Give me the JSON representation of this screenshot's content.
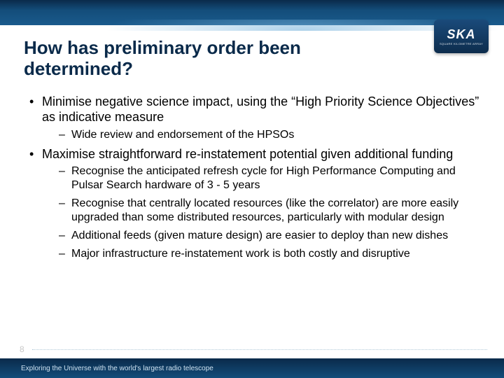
{
  "logo": {
    "main": "SKA",
    "sub": "SQUARE KILOMETRE ARRAY"
  },
  "title": "How has preliminary order been determined?",
  "bullets": [
    {
      "text": "Minimise negative science impact, using the “High Priority Science Objectives” as indicative measure",
      "sub": [
        "Wide review and endorsement of the HPSOs"
      ]
    },
    {
      "text": "Maximise straightforward re-instatement potential given additional funding",
      "sub": [
        "Recognise the anticipated refresh cycle for High Performance Computing and Pulsar Search hardware of 3 - 5 years",
        "Recognise that centrally located resources (like the correlator) are more easily upgraded than some distributed resources, particularly with modular design",
        "Additional feeds (given mature design) are easier to deploy than new dishes",
        "Major infrastructure re-instatement work is both costly and disruptive"
      ]
    }
  ],
  "page_number": "8",
  "footer": "Exploring the Universe with the world's largest radio telescope",
  "colors": {
    "title_color": "#0a2a4a",
    "body_color": "#000000",
    "banner_dark": "#0a2a4a",
    "banner_light": "#134d7a",
    "background": "#ffffff"
  },
  "typography": {
    "title_fontsize_pt": 20,
    "body_fontsize_pt": 14,
    "sub_fontsize_pt": 12,
    "font_family": "Arial"
  }
}
